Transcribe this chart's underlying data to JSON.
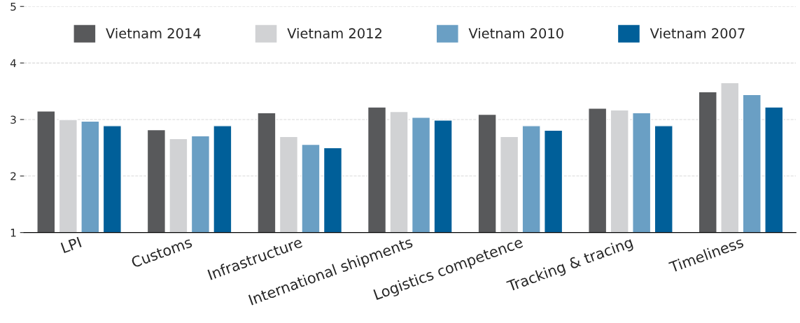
{
  "chart_data": {
    "type": "bar",
    "categories": [
      "LPI",
      "Customs",
      "Infrastructure",
      "International shipments",
      "Logistics competence",
      "Tracking & tracing",
      "Timeliness"
    ],
    "series": [
      {
        "name": "Vietnam 2014",
        "color": "#58595b",
        "values": [
          3.15,
          2.82,
          3.12,
          3.22,
          3.09,
          3.2,
          3.49
        ]
      },
      {
        "name": "Vietnam 2012",
        "color": "#d1d2d4",
        "values": [
          3.0,
          2.66,
          2.7,
          3.14,
          2.7,
          3.17,
          3.65
        ]
      },
      {
        "name": "Vietnam 2010",
        "color": "#6a9fc4",
        "values": [
          2.97,
          2.71,
          2.56,
          3.04,
          2.89,
          3.12,
          3.44
        ]
      },
      {
        "name": "Vietnam 2007",
        "color": "#005f99",
        "values": [
          2.89,
          2.89,
          2.5,
          2.99,
          2.81,
          2.89,
          3.22
        ]
      }
    ],
    "ylim": [
      1,
      5
    ],
    "yticks": [
      1,
      2,
      3,
      4,
      5
    ],
    "grid": "y",
    "legend": "top"
  }
}
